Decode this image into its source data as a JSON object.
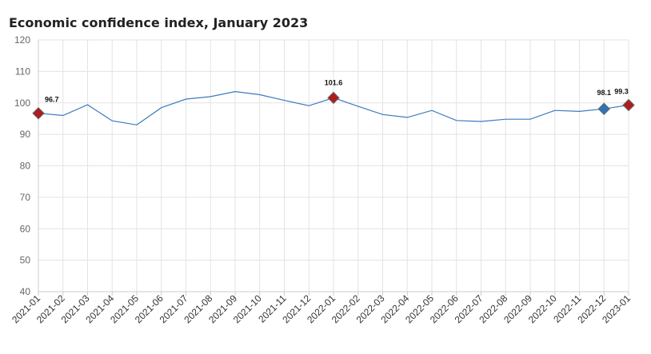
{
  "chart_data": {
    "type": "line",
    "title": "Economic confidence index, January 2023",
    "xlabel": "",
    "ylabel": "",
    "ylim": [
      40,
      120
    ],
    "yticks": [
      40,
      50,
      60,
      70,
      80,
      90,
      100,
      110,
      120
    ],
    "grid": true,
    "legend": "none",
    "categories": [
      "2021-01",
      "2021-02",
      "2021-03",
      "2021-04",
      "2021-05",
      "2021-06",
      "2021-07",
      "2021-08",
      "2021-09",
      "2021-10",
      "2021-11",
      "2021-12",
      "2022-01",
      "2022-02",
      "2022-03",
      "2022-04",
      "2022-05",
      "2022-06",
      "2022-07",
      "2022-08",
      "2022-09",
      "2022-10",
      "2022-11",
      "2022-12",
      "2023-01"
    ],
    "series": [
      {
        "values": [
          96.7,
          96.0,
          99.4,
          94.3,
          93.0,
          98.5,
          101.2,
          102.0,
          103.6,
          102.6,
          100.8,
          99.1,
          101.6,
          98.9,
          96.3,
          95.4,
          97.6,
          94.4,
          94.1,
          94.8,
          94.8,
          97.6,
          97.3,
          98.1,
          99.3
        ]
      }
    ],
    "highlighted_points": [
      {
        "category": "2021-01",
        "value": 96.7,
        "label": "96.7",
        "color": "#b01c1c"
      },
      {
        "category": "2022-01",
        "value": 101.6,
        "label": "101.6",
        "color": "#b01c1c"
      },
      {
        "category": "2022-12",
        "value": 98.1,
        "label": "98.1",
        "color": "#2e74b5"
      },
      {
        "category": "2023-01",
        "value": 99.3,
        "label": "99.3",
        "color": "#b01c1c"
      }
    ],
    "colors": {
      "line": "#3a7bbf",
      "grid": "#e3e3e3",
      "axis": "#cccccc",
      "marker_red": "#b01c1c",
      "marker_blue": "#2e74b5"
    }
  }
}
